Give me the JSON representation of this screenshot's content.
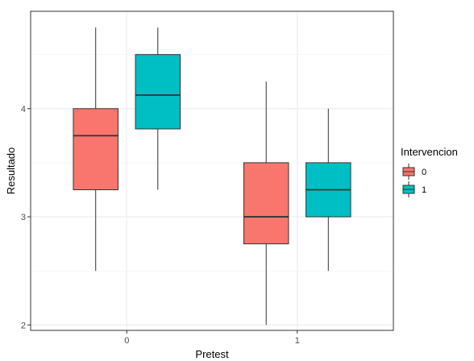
{
  "chart_data": {
    "type": "boxplot",
    "title": "",
    "xlabel": "Pretest",
    "ylabel": "Resultado",
    "categories": [
      "0",
      "1"
    ],
    "ylim": [
      1.95,
      4.9
    ],
    "y_ticks": [
      2,
      3,
      4
    ],
    "y_tick_labels": [
      "2",
      "3",
      "4"
    ],
    "grid": true,
    "legend": {
      "title": "Intervencion",
      "position": "right",
      "entries": [
        {
          "label": "0",
          "color": "#F8766D"
        },
        {
          "label": "1",
          "color": "#00BFC4"
        }
      ]
    },
    "series": [
      {
        "name": "0",
        "color": "#F8766D",
        "boxes": [
          {
            "category": "0",
            "min": 2.5,
            "q1": 3.25,
            "median": 3.75,
            "q3": 4.0,
            "max": 4.75
          },
          {
            "category": "1",
            "min": 2.0,
            "q1": 2.75,
            "median": 3.0,
            "q3": 3.5,
            "max": 4.25
          }
        ]
      },
      {
        "name": "1",
        "color": "#00BFC4",
        "boxes": [
          {
            "category": "0",
            "min": 3.25,
            "q1": 3.8125,
            "median": 4.125,
            "q3": 4.5,
            "max": 4.75
          },
          {
            "category": "1",
            "min": 2.5,
            "q1": 3.0,
            "median": 3.25,
            "q3": 3.5,
            "max": 4.0
          }
        ]
      }
    ]
  }
}
